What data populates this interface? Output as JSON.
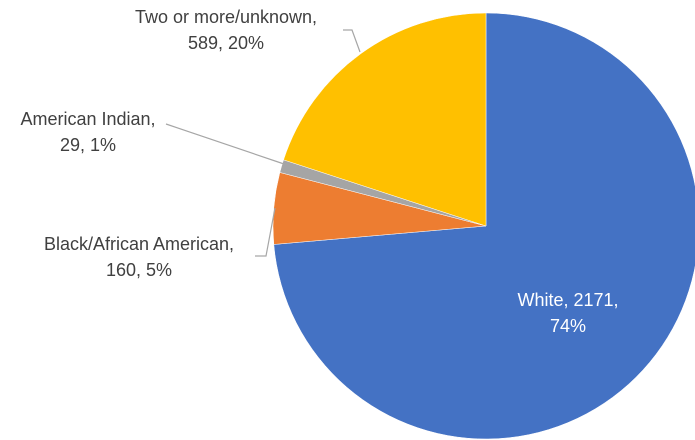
{
  "chart_data": {
    "type": "pie",
    "title": "",
    "slices": [
      {
        "name": "White",
        "value": 2171,
        "percent": "74%",
        "color": "#4472C4",
        "label_line1": "White, 2171,",
        "label_line2": "74%"
      },
      {
        "name": "Black/African American",
        "value": 160,
        "percent": "5%",
        "color": "#ED7D31",
        "label_line1": "Black/African American,",
        "label_line2": "160, 5%"
      },
      {
        "name": "American Indian",
        "value": 29,
        "percent": "1%",
        "color": "#A5A5A5",
        "label_line1": "American Indian,",
        "label_line2": "29, 1%"
      },
      {
        "name": "Two or more/unknown",
        "value": 589,
        "percent": "20%",
        "color": "#FFC000",
        "label_line1": "Two or more/unknown,",
        "label_line2": "589, 20%"
      }
    ]
  }
}
